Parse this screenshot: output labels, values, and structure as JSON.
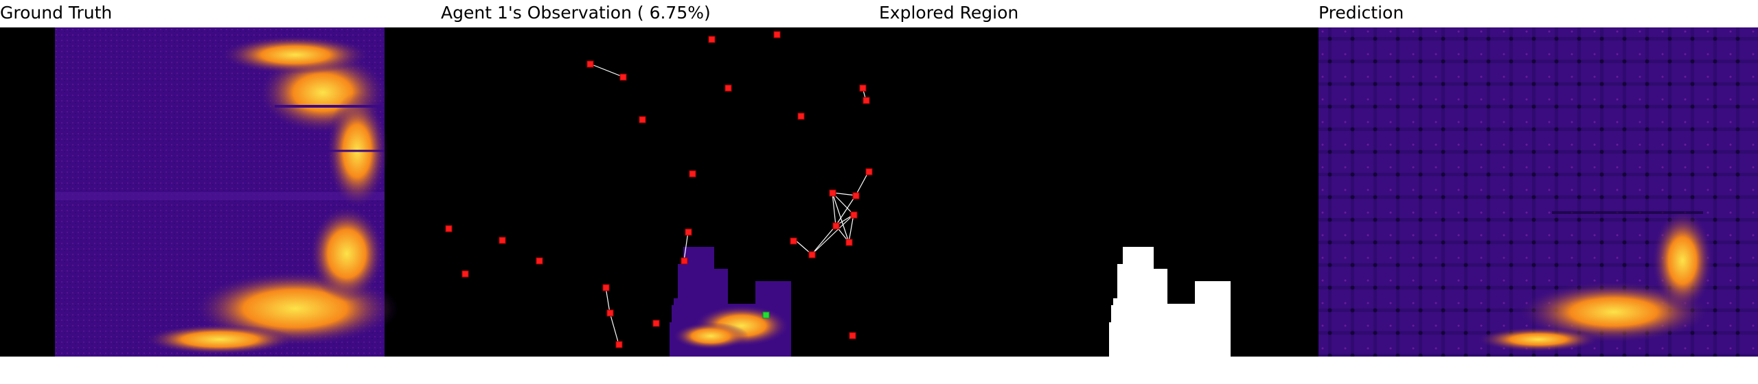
{
  "titles": {
    "ground_truth": "Ground Truth",
    "observation": "Agent 1's Observation ( 6.75%)",
    "explored": "Explored Region",
    "prediction": "Prediction"
  },
  "colors": {
    "background_dark": "#000000",
    "field_purple": "#3d0a84",
    "field_hot_orange": "#f7891b",
    "field_yellow": "#fce34a",
    "agent_red": "#ff1a1a",
    "agent_green": "#22dd33",
    "link_white": "#ffffff",
    "explored_white": "#ffffff"
  }
}
